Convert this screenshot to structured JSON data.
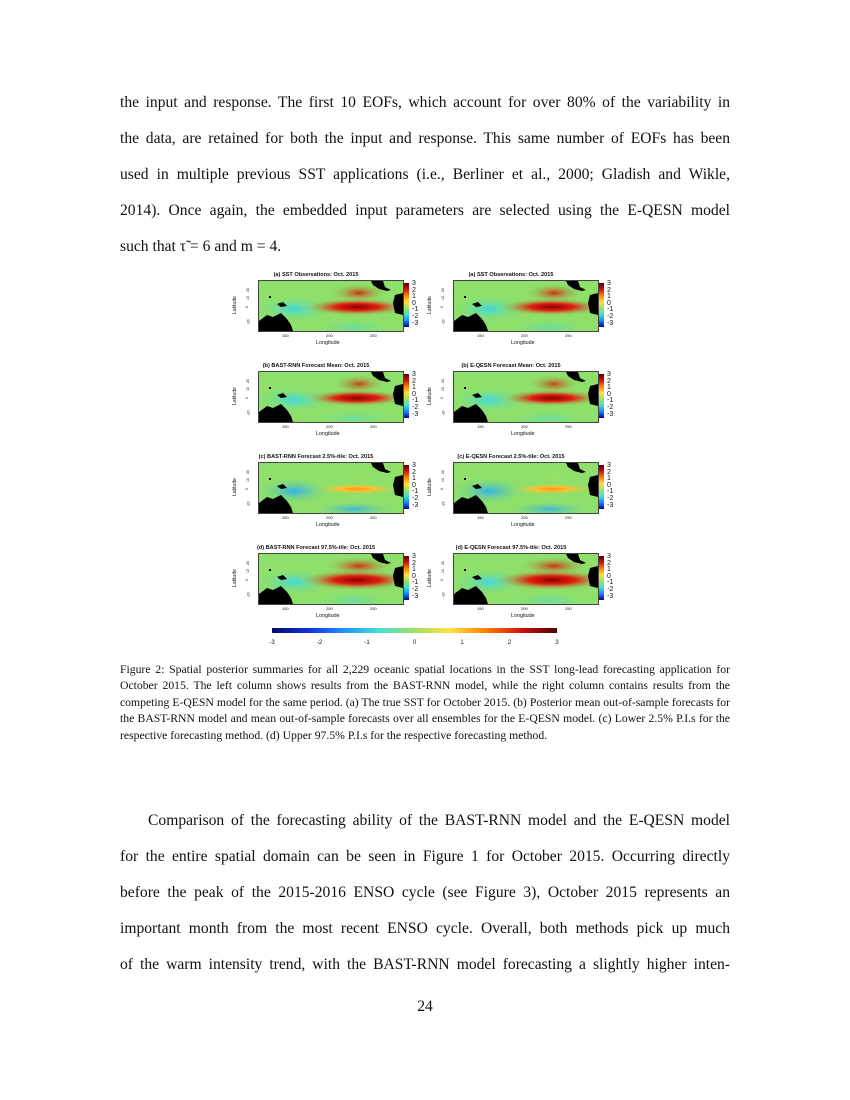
{
  "body_top": [
    "the input and response. The first 10 EOFs, which account for over 80% of the variability in",
    "the data, are retained for both the input and response. This same number of EOFs has been",
    "used in multiple previous SST applications (i.e., Berliner et al., 2000; Gladish and Wikle,",
    "2014). Once again, the embedded input parameters are selected using the E-QESN model",
    "such that τ̃ = 6 and m = 4."
  ],
  "figure": {
    "panels": [
      {
        "key": "a",
        "title": "(a) SST Observations:  Oct.   2015"
      },
      {
        "key": "a",
        "title": "(a) SST Observations:  Oct.   2015"
      },
      {
        "key": "b",
        "title": "(b) BAST-RNN Forecast Mean:  Oct.   2015"
      },
      {
        "key": "b",
        "title": "(b) E-QESN Forecast Mean:  Oct.   2015"
      },
      {
        "key": "c",
        "title": "(c) BAST-RNN Forecast 2.5%-tile:  Oct.   2015"
      },
      {
        "key": "c",
        "title": "(c) E-QESN Forecast 2.5%-tile:  Oct.   2015"
      },
      {
        "key": "d",
        "title": "(d) BAST-RNN Forecast 97.5%-tile:  Oct.   2015"
      },
      {
        "key": "d",
        "title": "(d) E-QESN Forecast 97.5%-tile:  Oct.   2015"
      }
    ],
    "xlabel": "Longitude",
    "ylabel": "Latitude",
    "xticks": [
      "150",
      "200",
      "250"
    ],
    "yticks": [
      "20",
      "10",
      "0",
      "-20"
    ],
    "colorbar_ticks": [
      "3",
      "2",
      "1",
      "0",
      "-1",
      "-2",
      "-3"
    ],
    "bottom_colorbar_ticks": [
      "-3",
      "-2",
      "-1",
      "0",
      "1",
      "2",
      "3"
    ],
    "colors": {
      "land": "#000000",
      "neutral": "#8ee06a",
      "warm": "#c00000",
      "cool": "#40d8e0"
    }
  },
  "caption": "Figure 2: Spatial posterior summaries for all 2,229 oceanic spatial locations in the SST long-lead forecasting application for October 2015. The left column shows results from the BAST-RNN model, while the right column contains results from the competing E-QESN model for the same period. (a) The true SST for October 2015. (b) Posterior mean out-of-sample forecasts for the BAST-RNN model and mean out-of-sample forecasts over all ensembles for the E-QESN model. (c) Lower 2.5% P.I.s for the respective forecasting method. (d) Upper 97.5% P.I.s for the respective forecasting method.",
  "body_bottom": [
    "Comparison of the forecasting ability of the BAST-RNN model and the E-QESN model",
    "for the entire spatial domain can be seen in Figure 1 for October 2015. Occurring directly",
    "before the peak of the 2015-2016 ENSO cycle (see Figure 3), October 2015 represents an",
    "important month from the most recent ENSO cycle. Overall, both methods pick up much",
    "of the warm intensity trend, with the BAST-RNN model forecasting a slightly higher inten-"
  ],
  "page_number": "24"
}
